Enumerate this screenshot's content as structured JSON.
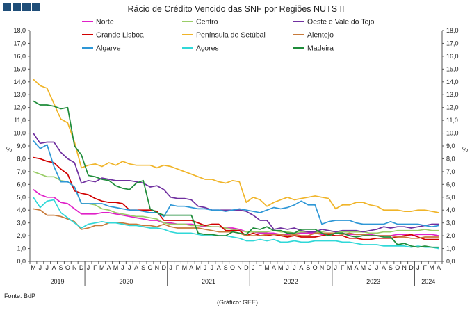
{
  "logo": {
    "name": "gee-logo",
    "colors": [
      "#1f4e79"
    ]
  },
  "source": "Fonte: BdP",
  "credit": "(Gráfico: GEE)",
  "chart_data": {
    "type": "line",
    "title": "Rácio de Crédito Vencido das SNF por Regiões NUTS II",
    "ylabel": "%",
    "ylim": [
      0,
      18
    ],
    "ytick_step": 1,
    "ytick_labels": [
      "0,0",
      "1,0",
      "2,0",
      "3,0",
      "4,0",
      "5,0",
      "6,0",
      "7,0",
      "8,0",
      "9,0",
      "10,0",
      "11,0",
      "12,0",
      "13,0",
      "14,0",
      "15,0",
      "16,0",
      "17,0",
      "18,0"
    ],
    "grid": false,
    "legend_position": "top",
    "month_labels": [
      "M",
      "J",
      "J",
      "A",
      "S",
      "O",
      "N",
      "D",
      "J",
      "F",
      "M",
      "A",
      "M",
      "J",
      "J",
      "A",
      "S",
      "O",
      "N",
      "D",
      "J",
      "F",
      "M",
      "A",
      "M",
      "J",
      "J",
      "A",
      "S",
      "O",
      "N",
      "D",
      "J",
      "F",
      "M",
      "A",
      "M",
      "J",
      "J",
      "A",
      "S",
      "O",
      "N",
      "D",
      "J",
      "F",
      "M",
      "A",
      "M",
      "J",
      "J",
      "A",
      "S",
      "O",
      "N",
      "D",
      "J",
      "F",
      "M",
      "A"
    ],
    "year_labels": [
      {
        "label": "2019",
        "start": 0,
        "end": 7
      },
      {
        "label": "2020",
        "start": 8,
        "end": 19
      },
      {
        "label": "2021",
        "start": 20,
        "end": 31
      },
      {
        "label": "2022",
        "start": 32,
        "end": 43
      },
      {
        "label": "2023",
        "start": 44,
        "end": 55
      },
      {
        "label": "2024",
        "start": 56,
        "end": 59
      }
    ],
    "series": [
      {
        "name": "Norte",
        "color": "#e020c8",
        "values": [
          5.6,
          5.2,
          5.0,
          5.0,
          4.6,
          4.5,
          4.1,
          3.7,
          3.7,
          3.7,
          3.8,
          3.8,
          3.7,
          3.6,
          3.5,
          3.4,
          3.3,
          3.2,
          3.2,
          3.0,
          3.0,
          2.9,
          2.9,
          2.9,
          2.8,
          2.7,
          2.7,
          2.7,
          2.6,
          2.6,
          2.5,
          2.3,
          2.3,
          2.2,
          2.2,
          2.2,
          2.1,
          2.1,
          2.2,
          2.2,
          2.2,
          2.2,
          2.1,
          2.1,
          2.2,
          2.2,
          2.1,
          2.1,
          2.1,
          2.1,
          2.0,
          2.0,
          2.0,
          2.1,
          2.1,
          2.0,
          2.1,
          2.1,
          2.1,
          2.0
        ]
      },
      {
        "name": "Centro",
        "color": "#9acd68",
        "values": [
          7.0,
          6.8,
          6.6,
          6.6,
          6.3,
          6.2,
          5.8,
          4.5,
          4.5,
          4.4,
          4.1,
          4.0,
          3.8,
          3.7,
          3.6,
          3.5,
          3.5,
          3.4,
          3.3,
          3.0,
          2.9,
          2.9,
          2.9,
          2.8,
          2.8,
          2.8,
          2.7,
          2.7,
          2.6,
          2.5,
          2.4,
          2.3,
          2.3,
          2.3,
          2.3,
          2.4,
          2.3,
          2.3,
          2.2,
          2.3,
          2.3,
          2.3,
          2.3,
          2.4,
          2.3,
          2.3,
          2.3,
          2.3,
          2.3,
          2.2,
          2.2,
          2.3,
          2.3,
          2.4,
          2.4,
          2.4,
          2.4,
          2.5,
          2.4,
          2.4
        ]
      },
      {
        "name": "Oeste e Vale do Tejo",
        "color": "#7030a0",
        "values": [
          10.0,
          9.2,
          9.3,
          9.3,
          8.5,
          8.0,
          7.7,
          6.1,
          6.3,
          6.2,
          6.5,
          6.4,
          6.3,
          6.3,
          6.3,
          6.2,
          6.1,
          5.8,
          5.9,
          5.6,
          5.0,
          4.9,
          4.9,
          4.8,
          4.3,
          4.2,
          4.0,
          4.0,
          4.0,
          4.0,
          4.0,
          3.9,
          3.6,
          3.2,
          3.2,
          2.5,
          2.6,
          2.5,
          2.6,
          2.4,
          2.3,
          2.3,
          2.5,
          2.4,
          2.3,
          2.4,
          2.4,
          2.4,
          2.3,
          2.4,
          2.5,
          2.7,
          2.6,
          2.7,
          2.7,
          2.6,
          2.7,
          2.8,
          2.9,
          2.9
        ]
      },
      {
        "name": "Grande Lisboa",
        "color": "#d10000",
        "values": [
          8.1,
          8.0,
          7.8,
          7.7,
          7.2,
          6.8,
          5.5,
          5.3,
          5.2,
          4.9,
          4.7,
          4.6,
          4.6,
          4.5,
          4.0,
          4.0,
          4.0,
          4.0,
          3.9,
          3.2,
          3.2,
          3.2,
          3.2,
          3.2,
          3.0,
          2.8,
          2.9,
          2.9,
          2.4,
          2.4,
          2.4,
          2.0,
          2.2,
          2.0,
          2.0,
          2.1,
          2.0,
          1.9,
          2.0,
          1.9,
          1.9,
          1.9,
          2.0,
          2.1,
          2.0,
          2.0,
          1.8,
          1.8,
          1.7,
          1.7,
          1.8,
          1.8,
          1.8,
          1.9,
          2.0,
          2.1,
          1.9,
          1.7,
          1.7,
          1.7
        ]
      },
      {
        "name": "Península de Setúbal",
        "color": "#f0b428",
        "values": [
          14.2,
          13.7,
          13.5,
          12.3,
          11.1,
          10.8,
          9.3,
          7.3,
          7.5,
          7.6,
          7.4,
          7.7,
          7.5,
          7.8,
          7.6,
          7.5,
          7.5,
          7.5,
          7.3,
          7.5,
          7.4,
          7.2,
          7.0,
          6.8,
          6.6,
          6.4,
          6.4,
          6.2,
          6.1,
          6.3,
          6.2,
          4.6,
          5.0,
          4.8,
          4.3,
          4.6,
          4.8,
          5.0,
          4.8,
          4.9,
          5.0,
          5.1,
          5.0,
          4.9,
          4.1,
          4.4,
          4.4,
          4.6,
          4.6,
          4.4,
          4.3,
          4.0,
          4.0,
          4.0,
          3.9,
          3.9,
          4.0,
          4.0,
          3.9,
          3.8
        ]
      },
      {
        "name": "Alentejo",
        "color": "#c87a3a",
        "values": [
          4.1,
          4.0,
          3.6,
          3.6,
          3.5,
          3.3,
          3.1,
          2.5,
          2.6,
          2.8,
          2.8,
          3.0,
          3.0,
          3.0,
          2.9,
          2.9,
          2.8,
          2.8,
          2.7,
          2.9,
          2.7,
          2.6,
          2.6,
          2.6,
          2.6,
          2.5,
          2.4,
          2.3,
          2.3,
          2.3,
          2.2,
          2.0,
          2.0,
          2.0,
          2.1,
          2.1,
          2.1,
          2.0,
          2.1,
          2.0,
          2.0,
          2.2,
          2.2,
          2.2,
          2.2,
          2.1,
          2.2,
          2.1,
          2.1,
          2.0,
          2.0,
          2.0,
          2.0,
          1.9,
          1.9,
          1.8,
          1.8,
          1.9,
          1.9,
          1.9
        ]
      },
      {
        "name": "Algarve",
        "color": "#2e97d6",
        "values": [
          9.4,
          8.8,
          9.1,
          7.4,
          6.2,
          6.2,
          5.8,
          4.5,
          4.5,
          4.5,
          4.5,
          4.3,
          4.2,
          4.1,
          4.0,
          4.0,
          3.9,
          3.8,
          3.8,
          3.5,
          4.4,
          4.3,
          4.3,
          4.2,
          4.1,
          4.1,
          4.0,
          4.0,
          3.9,
          4.0,
          4.1,
          4.0,
          3.9,
          3.8,
          4.0,
          4.2,
          4.1,
          4.2,
          4.4,
          4.7,
          4.4,
          4.4,
          2.9,
          3.1,
          3.2,
          3.2,
          3.2,
          3.0,
          2.9,
          2.9,
          2.9,
          2.9,
          3.1,
          2.9,
          2.9,
          2.9,
          2.9,
          2.8,
          2.7,
          2.8
        ]
      },
      {
        "name": "Açores",
        "color": "#30d8d8",
        "values": [
          5.0,
          4.2,
          4.7,
          4.8,
          3.8,
          3.4,
          3.0,
          2.6,
          2.9,
          3.0,
          3.1,
          3.0,
          3.0,
          2.9,
          2.8,
          2.8,
          2.7,
          2.6,
          2.6,
          2.5,
          2.3,
          2.2,
          2.2,
          2.2,
          2.1,
          2.0,
          2.0,
          2.0,
          2.0,
          1.9,
          1.8,
          1.6,
          1.6,
          1.7,
          1.6,
          1.7,
          1.5,
          1.5,
          1.6,
          1.5,
          1.5,
          1.6,
          1.6,
          1.6,
          1.6,
          1.5,
          1.5,
          1.4,
          1.3,
          1.3,
          1.3,
          1.2,
          1.2,
          1.2,
          1.2,
          1.1,
          1.2,
          1.1,
          1.1,
          1.0
        ]
      },
      {
        "name": "Madeira",
        "color": "#1e8c3a",
        "values": [
          12.5,
          12.2,
          12.2,
          12.1,
          11.9,
          12.0,
          9.0,
          8.3,
          6.7,
          6.6,
          6.4,
          6.3,
          5.9,
          5.7,
          5.6,
          6.1,
          6.3,
          4.1,
          3.8,
          3.6,
          3.6,
          3.6,
          3.6,
          3.6,
          2.2,
          2.1,
          2.1,
          2.0,
          2.0,
          2.3,
          2.2,
          2.1,
          2.6,
          2.5,
          2.7,
          2.4,
          2.4,
          2.2,
          2.2,
          2.5,
          2.5,
          2.5,
          2.2,
          2.0,
          2.2,
          2.2,
          2.0,
          1.9,
          2.0,
          2.0,
          2.0,
          1.9,
          1.9,
          1.3,
          1.4,
          1.2,
          1.1,
          1.2,
          1.1,
          1.1
        ]
      }
    ]
  }
}
